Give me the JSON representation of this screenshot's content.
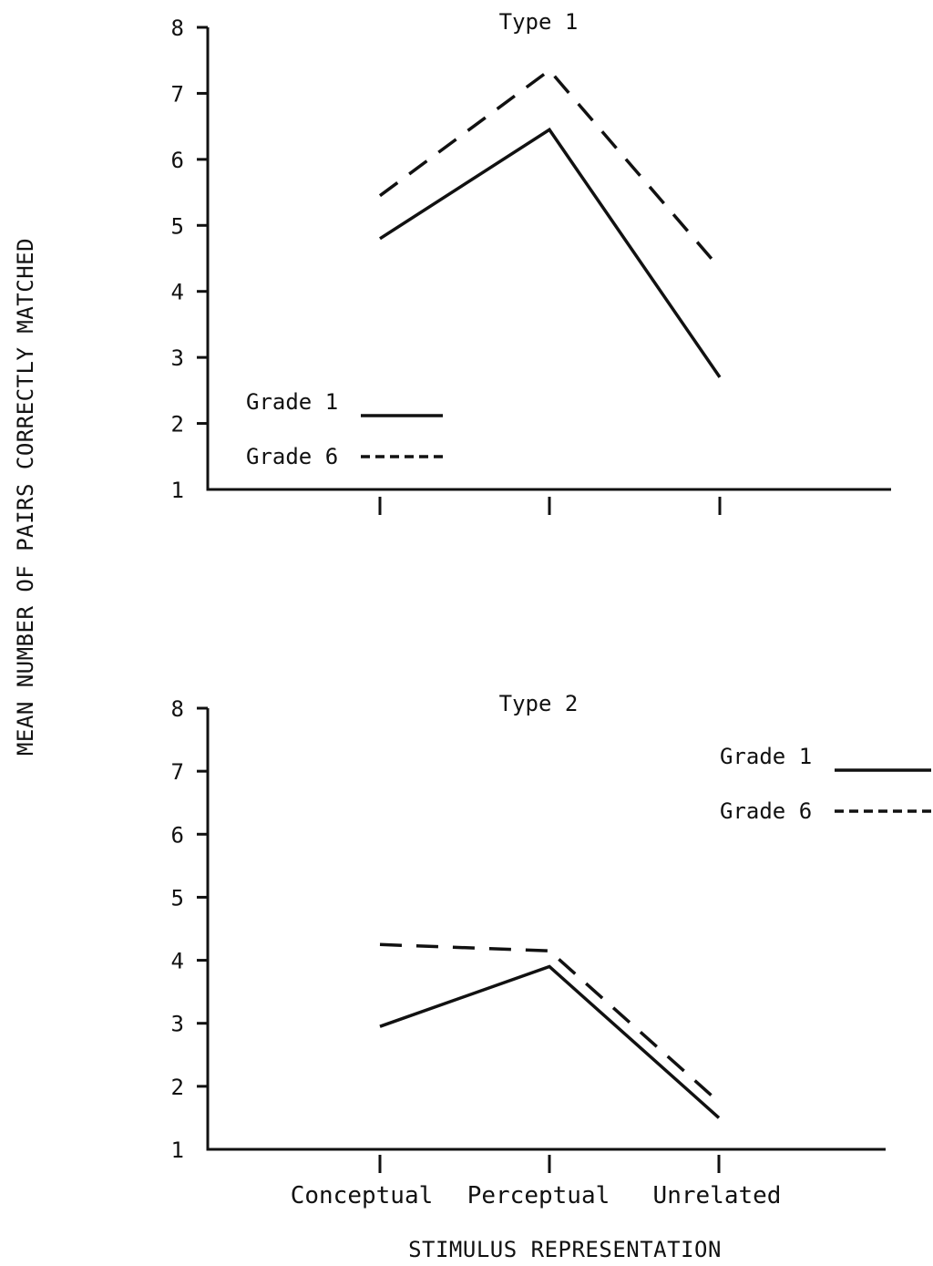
{
  "y_axis_title": "MEAN NUMBER OF PAIRS CORRECTLY MATCHED",
  "x_axis_title": "STIMULUS REPRESENTATION",
  "chart_data": [
    {
      "type": "line",
      "title": "Type 1",
      "categories": [
        "Conceptual",
        "Perceptual",
        "Unrelated"
      ],
      "series": [
        {
          "name": "Grade 1",
          "style": "solid",
          "values": [
            4.8,
            6.45,
            2.7
          ]
        },
        {
          "name": "Grade 6",
          "style": "dashed",
          "values": [
            5.45,
            7.35,
            4.35
          ]
        }
      ],
      "ylim": [
        1,
        8
      ],
      "yticks": [
        1,
        2,
        3,
        4,
        5,
        6,
        7,
        8
      ],
      "legend": {
        "placement": "bottom-left",
        "grade1_label": "Grade 1",
        "grade6_label": "Grade 6"
      }
    },
    {
      "type": "line",
      "title": "Type 2",
      "categories": [
        "Conceptual",
        "Perceptual",
        "Unrelated"
      ],
      "series": [
        {
          "name": "Grade 1",
          "style": "solid",
          "values": [
            2.95,
            3.9,
            1.5
          ]
        },
        {
          "name": "Grade 6",
          "style": "dashed",
          "values": [
            4.25,
            4.15,
            1.75
          ]
        }
      ],
      "ylim": [
        1,
        8
      ],
      "yticks": [
        1,
        2,
        3,
        4,
        5,
        6,
        7,
        8
      ],
      "legend": {
        "placement": "top-right",
        "grade1_label": "Grade 1",
        "grade6_label": "Grade 6"
      }
    }
  ]
}
